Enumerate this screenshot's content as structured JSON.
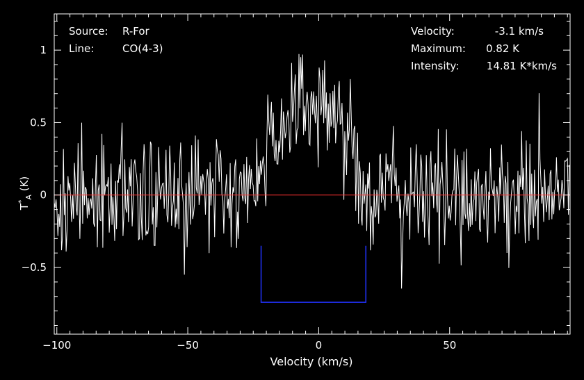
{
  "info": {
    "source_label": "Source:",
    "source_value": "R-For",
    "line_label": "Line:",
    "line_value": "CO(4-3)",
    "velocity_label": "Velocity:",
    "velocity_value": "-3.1 km/s",
    "maximum_label": "Maximum:",
    "maximum_value": "0.82 K",
    "intensity_label": "Intensity:",
    "intensity_value": "14.81 K*km/s"
  },
  "colors": {
    "background": "#000000",
    "frame": "#ffffff",
    "spectrum": "#ffffff",
    "baseline": "#ff3333",
    "window": "#2233ff"
  },
  "chart_data": {
    "type": "line",
    "xlabel": "Velocity (km/s)",
    "ylabel_main": "T",
    "ylabel_sup": "*",
    "ylabel_sub": "A",
    "ylabel_unit": " (K)",
    "xlim": [
      -101,
      96
    ],
    "ylim": [
      -0.96,
      1.25
    ],
    "x_ticks": [
      -100,
      -50,
      0,
      50
    ],
    "x_tick_labels": [
      "−100",
      "−50",
      "0",
      "50"
    ],
    "y_ticks": [
      -0.5,
      0,
      0.5,
      1
    ],
    "y_tick_labels": [
      "−0.5",
      "0",
      "0.5",
      "1"
    ],
    "baseline_level": 0,
    "integration_window": {
      "vmin": -22,
      "vmax": 18,
      "bottom": -0.74
    },
    "series": [
      {
        "noise_rms": 0.2,
        "channel_width_kms": 0.35,
        "profile": {
          "peak": 0.65,
          "center": -3.1,
          "half_width": 18,
          "edge_level": 0.12
        }
      }
    ]
  }
}
